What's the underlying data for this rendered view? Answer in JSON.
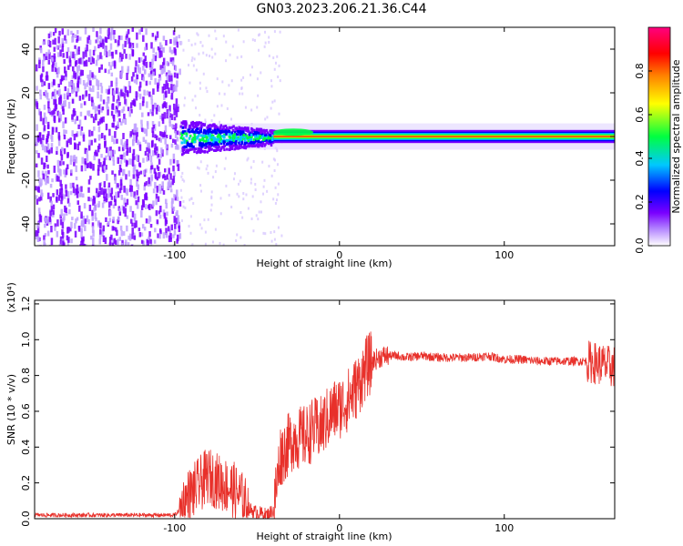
{
  "title": "GN03.2023.206.21.36.C44",
  "colors": {
    "snr_line": "#e8302a",
    "spectrogram_palette": [
      "#ffffff",
      "#7a00ff",
      "#0000ff",
      "#00c8ff",
      "#00ff40",
      "#ffff00",
      "#ff8000",
      "#ff0000",
      "#ff0080"
    ]
  },
  "chart_data": [
    {
      "type": "heatmap",
      "xlabel": "Height of straight line (km)",
      "ylabel": "Frequency (Hz)",
      "xlim": [
        -185,
        167
      ],
      "ylim": [
        -50,
        50
      ],
      "x_ticks": [
        -100,
        0,
        100
      ],
      "x_tick_labels": [
        "-100",
        "0",
        "100"
      ],
      "y_ticks": [
        -40,
        -20,
        0,
        20,
        40
      ],
      "y_tick_labels": [
        "-40",
        "-20",
        "0",
        "20",
        "40"
      ],
      "colorbar": {
        "label": "Normalized spectral amplitude",
        "range": [
          0,
          1
        ],
        "ticks": [
          0.0,
          0.2,
          0.4,
          0.6,
          0.8
        ],
        "tick_labels": [
          "0.0",
          "0.2",
          "0.4",
          "0.6",
          "0.8"
        ]
      },
      "regions": [
        {
          "x_range": [
            -185,
            -97
          ],
          "description_value": "broadband noise",
          "amplitude": 0.1
        },
        {
          "x_range": [
            -97,
            -40
          ],
          "band_center": 0,
          "band_half_width": 8,
          "amplitude": 0.35
        },
        {
          "x_range": [
            -40,
            167
          ],
          "band_center": 0,
          "band_half_width": 2,
          "amplitude": 0.55
        }
      ]
    },
    {
      "type": "line",
      "xlabel": "Height of straight line (km)",
      "ylabel": "SNR (10 * v/v)",
      "y_multiplier": "(x10⁴)",
      "xlim": [
        -185,
        167
      ],
      "ylim": [
        0.0,
        1.22
      ],
      "x_ticks": [
        -100,
        0,
        100
      ],
      "x_tick_labels": [
        "-100",
        "0",
        "100"
      ],
      "y_ticks": [
        0.0,
        0.2,
        0.4,
        0.6,
        0.8,
        1.0,
        1.2
      ],
      "y_tick_labels": [
        "0.0",
        "0.2",
        "0.4",
        "0.6",
        "0.8",
        "1.0",
        "1.2"
      ],
      "series": [
        {
          "x": [
            -185,
            -150,
            -120,
            -100,
            -96,
            -92,
            -88,
            -84,
            -80,
            -76,
            -72,
            -68,
            -64,
            -60,
            -56,
            -52,
            -48,
            -44,
            -40,
            -36,
            -32,
            -28,
            -24,
            -20,
            -16,
            -12,
            -8,
            -4,
            0,
            4,
            8,
            12,
            16,
            20,
            24,
            28,
            32,
            36,
            40,
            50,
            60,
            70,
            80,
            90,
            100,
            110,
            120,
            130,
            140,
            150,
            155,
            160,
            163,
            167
          ],
          "y": [
            0.02,
            0.02,
            0.02,
            0.02,
            0.06,
            0.12,
            0.16,
            0.2,
            0.24,
            0.22,
            0.2,
            0.18,
            0.16,
            0.12,
            0.06,
            0.04,
            0.03,
            0.02,
            0.05,
            0.35,
            0.4,
            0.45,
            0.45,
            0.46,
            0.5,
            0.5,
            0.55,
            0.6,
            0.62,
            0.65,
            0.7,
            0.76,
            0.84,
            0.88,
            0.9,
            0.91,
            0.91,
            0.91,
            0.9,
            0.91,
            0.9,
            0.9,
            0.9,
            0.91,
            0.89,
            0.89,
            0.88,
            0.88,
            0.88,
            0.88,
            0.87,
            0.86,
            0.85,
            0.85
          ]
        }
      ]
    }
  ]
}
